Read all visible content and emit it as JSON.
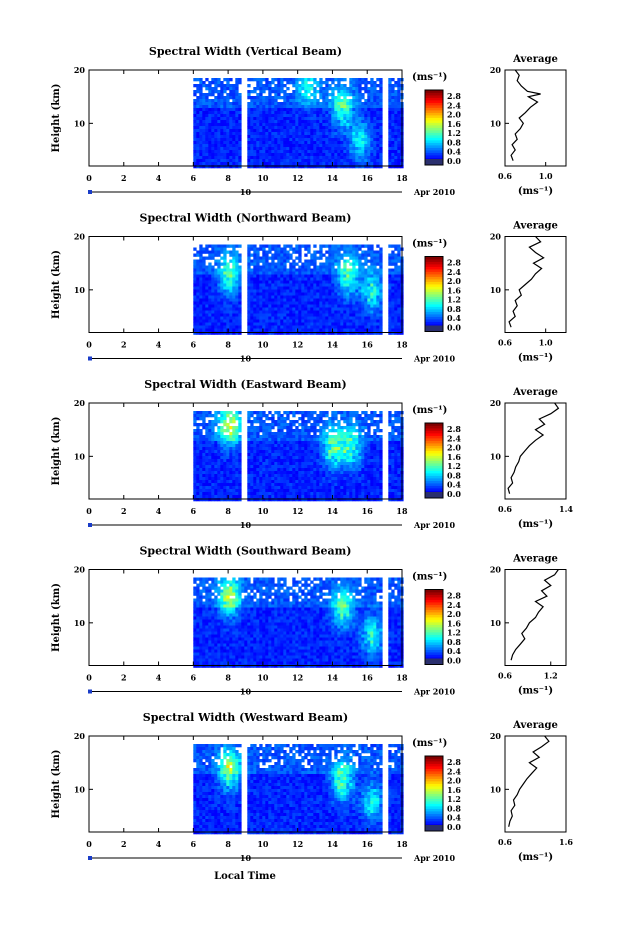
{
  "figure": {
    "xlabel": "Local Time",
    "date_label": "Apr 2010",
    "day_marker": "10",
    "ylabel": "Height (km)",
    "colorbar_unit": "(ms⁻¹)",
    "avg_title": "Average",
    "avg_xlabel": "(ms⁻¹)",
    "colorbar_ticks": [
      "2.8",
      "2.4",
      "2.0",
      "1.6",
      "1.2",
      "0.8",
      "0.4",
      "0.0"
    ],
    "x_ticks": [
      "0",
      "2",
      "4",
      "6",
      "8",
      "10",
      "12",
      "14",
      "16",
      "18"
    ],
    "y_ticks": [
      "20",
      "10"
    ],
    "avg_y_ticks": [
      "20",
      "10"
    ]
  },
  "chart_data": [
    {
      "type": "heatmap",
      "title": "Spectral Width (Vertical Beam)",
      "xlim": [
        0,
        18
      ],
      "ylim": [
        2,
        20
      ],
      "data_x_range": [
        6,
        18
      ],
      "gaps_hours": [
        [
          8.6,
          8.95
        ],
        [
          16.8,
          17.1
        ]
      ],
      "clim": [
        0.0,
        3.0
      ],
      "hotspots": [
        [
          14.5,
          13,
          0.9
        ],
        [
          15.5,
          7,
          0.7
        ],
        [
          12.5,
          17,
          0.6
        ]
      ],
      "average_profile": {
        "xlim": [
          0.6,
          1.2
        ],
        "ticks": [
          "0.6",
          "1.0"
        ],
        "points": [
          [
            0.68,
            3
          ],
          [
            0.66,
            4
          ],
          [
            0.7,
            5
          ],
          [
            0.67,
            6
          ],
          [
            0.72,
            7
          ],
          [
            0.7,
            8
          ],
          [
            0.75,
            9
          ],
          [
            0.78,
            10
          ],
          [
            0.74,
            11
          ],
          [
            0.8,
            12
          ],
          [
            0.85,
            13
          ],
          [
            0.92,
            14
          ],
          [
            0.83,
            15
          ],
          [
            0.95,
            15.5
          ],
          [
            0.82,
            16
          ],
          [
            0.76,
            17
          ],
          [
            0.72,
            18
          ],
          [
            0.74,
            19
          ],
          [
            0.7,
            20
          ]
        ]
      }
    },
    {
      "type": "heatmap",
      "title": "Spectral Width (Northward Beam)",
      "xlim": [
        0,
        18
      ],
      "ylim": [
        2,
        20
      ],
      "data_x_range": [
        6,
        18
      ],
      "gaps_hours": [
        [
          8.6,
          8.95
        ],
        [
          16.8,
          17.1
        ]
      ],
      "clim": [
        0.0,
        3.0
      ],
      "hotspots": [
        [
          8.0,
          13,
          0.9
        ],
        [
          14.8,
          13,
          0.9
        ],
        [
          16.2,
          10,
          0.8
        ]
      ],
      "average_profile": {
        "xlim": [
          0.6,
          1.2
        ],
        "ticks": [
          "0.6",
          "1.0"
        ],
        "points": [
          [
            0.66,
            3
          ],
          [
            0.64,
            4
          ],
          [
            0.7,
            5
          ],
          [
            0.68,
            6
          ],
          [
            0.72,
            7
          ],
          [
            0.7,
            8
          ],
          [
            0.76,
            9
          ],
          [
            0.74,
            10
          ],
          [
            0.8,
            11
          ],
          [
            0.86,
            12
          ],
          [
            0.9,
            13
          ],
          [
            0.96,
            14
          ],
          [
            0.88,
            15
          ],
          [
            0.98,
            16
          ],
          [
            0.9,
            17
          ],
          [
            0.84,
            18
          ],
          [
            0.95,
            19
          ],
          [
            0.9,
            20
          ]
        ]
      }
    },
    {
      "type": "heatmap",
      "title": "Spectral Width (Eastward Beam)",
      "xlim": [
        0,
        18
      ],
      "ylim": [
        2,
        20
      ],
      "data_x_range": [
        6,
        18
      ],
      "gaps_hours": [
        [
          8.6,
          8.95
        ],
        [
          16.8,
          17.1
        ]
      ],
      "clim": [
        0.0,
        3.0
      ],
      "hotspots": [
        [
          8.0,
          16,
          1.2
        ],
        [
          14.0,
          12,
          1.0
        ],
        [
          15.0,
          12,
          0.9
        ]
      ],
      "average_profile": {
        "xlim": [
          0.6,
          1.4
        ],
        "ticks": [
          "0.6",
          "1.4"
        ],
        "points": [
          [
            0.66,
            3
          ],
          [
            0.64,
            4
          ],
          [
            0.7,
            5
          ],
          [
            0.68,
            6
          ],
          [
            0.72,
            7
          ],
          [
            0.74,
            8
          ],
          [
            0.78,
            9
          ],
          [
            0.8,
            10
          ],
          [
            0.86,
            11
          ],
          [
            0.92,
            12
          ],
          [
            1.0,
            13
          ],
          [
            1.1,
            14
          ],
          [
            1.0,
            15
          ],
          [
            1.12,
            16
          ],
          [
            1.05,
            17
          ],
          [
            1.2,
            18
          ],
          [
            1.3,
            19
          ],
          [
            1.25,
            20
          ]
        ]
      }
    },
    {
      "type": "heatmap",
      "title": "Spectral Width (Southward Beam)",
      "xlim": [
        0,
        18
      ],
      "ylim": [
        2,
        20
      ],
      "data_x_range": [
        6,
        18
      ],
      "gaps_hours": [
        [
          16.8,
          17.1
        ]
      ],
      "clim": [
        0.0,
        3.0
      ],
      "hotspots": [
        [
          8.0,
          15,
          1.1
        ],
        [
          14.5,
          13,
          0.9
        ],
        [
          16.2,
          8,
          0.8
        ]
      ],
      "average_profile": {
        "xlim": [
          0.6,
          1.4
        ],
        "ticks": [
          "0.6",
          "1.2"
        ],
        "points": [
          [
            0.68,
            3
          ],
          [
            0.7,
            4
          ],
          [
            0.74,
            5
          ],
          [
            0.8,
            6
          ],
          [
            0.86,
            7
          ],
          [
            0.82,
            8
          ],
          [
            0.88,
            9
          ],
          [
            0.92,
            10
          ],
          [
            1.0,
            11
          ],
          [
            1.04,
            12
          ],
          [
            1.1,
            13
          ],
          [
            1.0,
            14
          ],
          [
            1.15,
            15
          ],
          [
            1.08,
            16
          ],
          [
            1.2,
            17
          ],
          [
            1.12,
            18
          ],
          [
            1.25,
            19
          ],
          [
            1.3,
            20
          ]
        ]
      }
    },
    {
      "type": "heatmap",
      "title": "Spectral Width (Westward Beam)",
      "xlim": [
        0,
        18
      ],
      "ylim": [
        2,
        20
      ],
      "data_x_range": [
        6,
        18
      ],
      "gaps_hours": [
        [
          8.6,
          8.95
        ],
        [
          16.8,
          17.1
        ]
      ],
      "clim": [
        0.0,
        3.0
      ],
      "hotspots": [
        [
          8.0,
          14,
          1.1
        ],
        [
          14.5,
          12,
          1.0
        ],
        [
          16.2,
          8,
          0.7
        ]
      ],
      "average_profile": {
        "xlim": [
          0.6,
          1.6
        ],
        "ticks": [
          "0.6",
          "1.6"
        ],
        "points": [
          [
            0.66,
            3
          ],
          [
            0.68,
            4
          ],
          [
            0.72,
            5
          ],
          [
            0.7,
            6
          ],
          [
            0.76,
            7
          ],
          [
            0.74,
            8
          ],
          [
            0.8,
            9
          ],
          [
            0.84,
            10
          ],
          [
            0.9,
            11
          ],
          [
            0.96,
            12
          ],
          [
            1.04,
            13
          ],
          [
            1.12,
            14
          ],
          [
            1.0,
            15
          ],
          [
            1.16,
            16
          ],
          [
            1.06,
            17
          ],
          [
            1.2,
            18
          ],
          [
            1.32,
            19
          ],
          [
            1.25,
            20
          ]
        ]
      }
    }
  ]
}
